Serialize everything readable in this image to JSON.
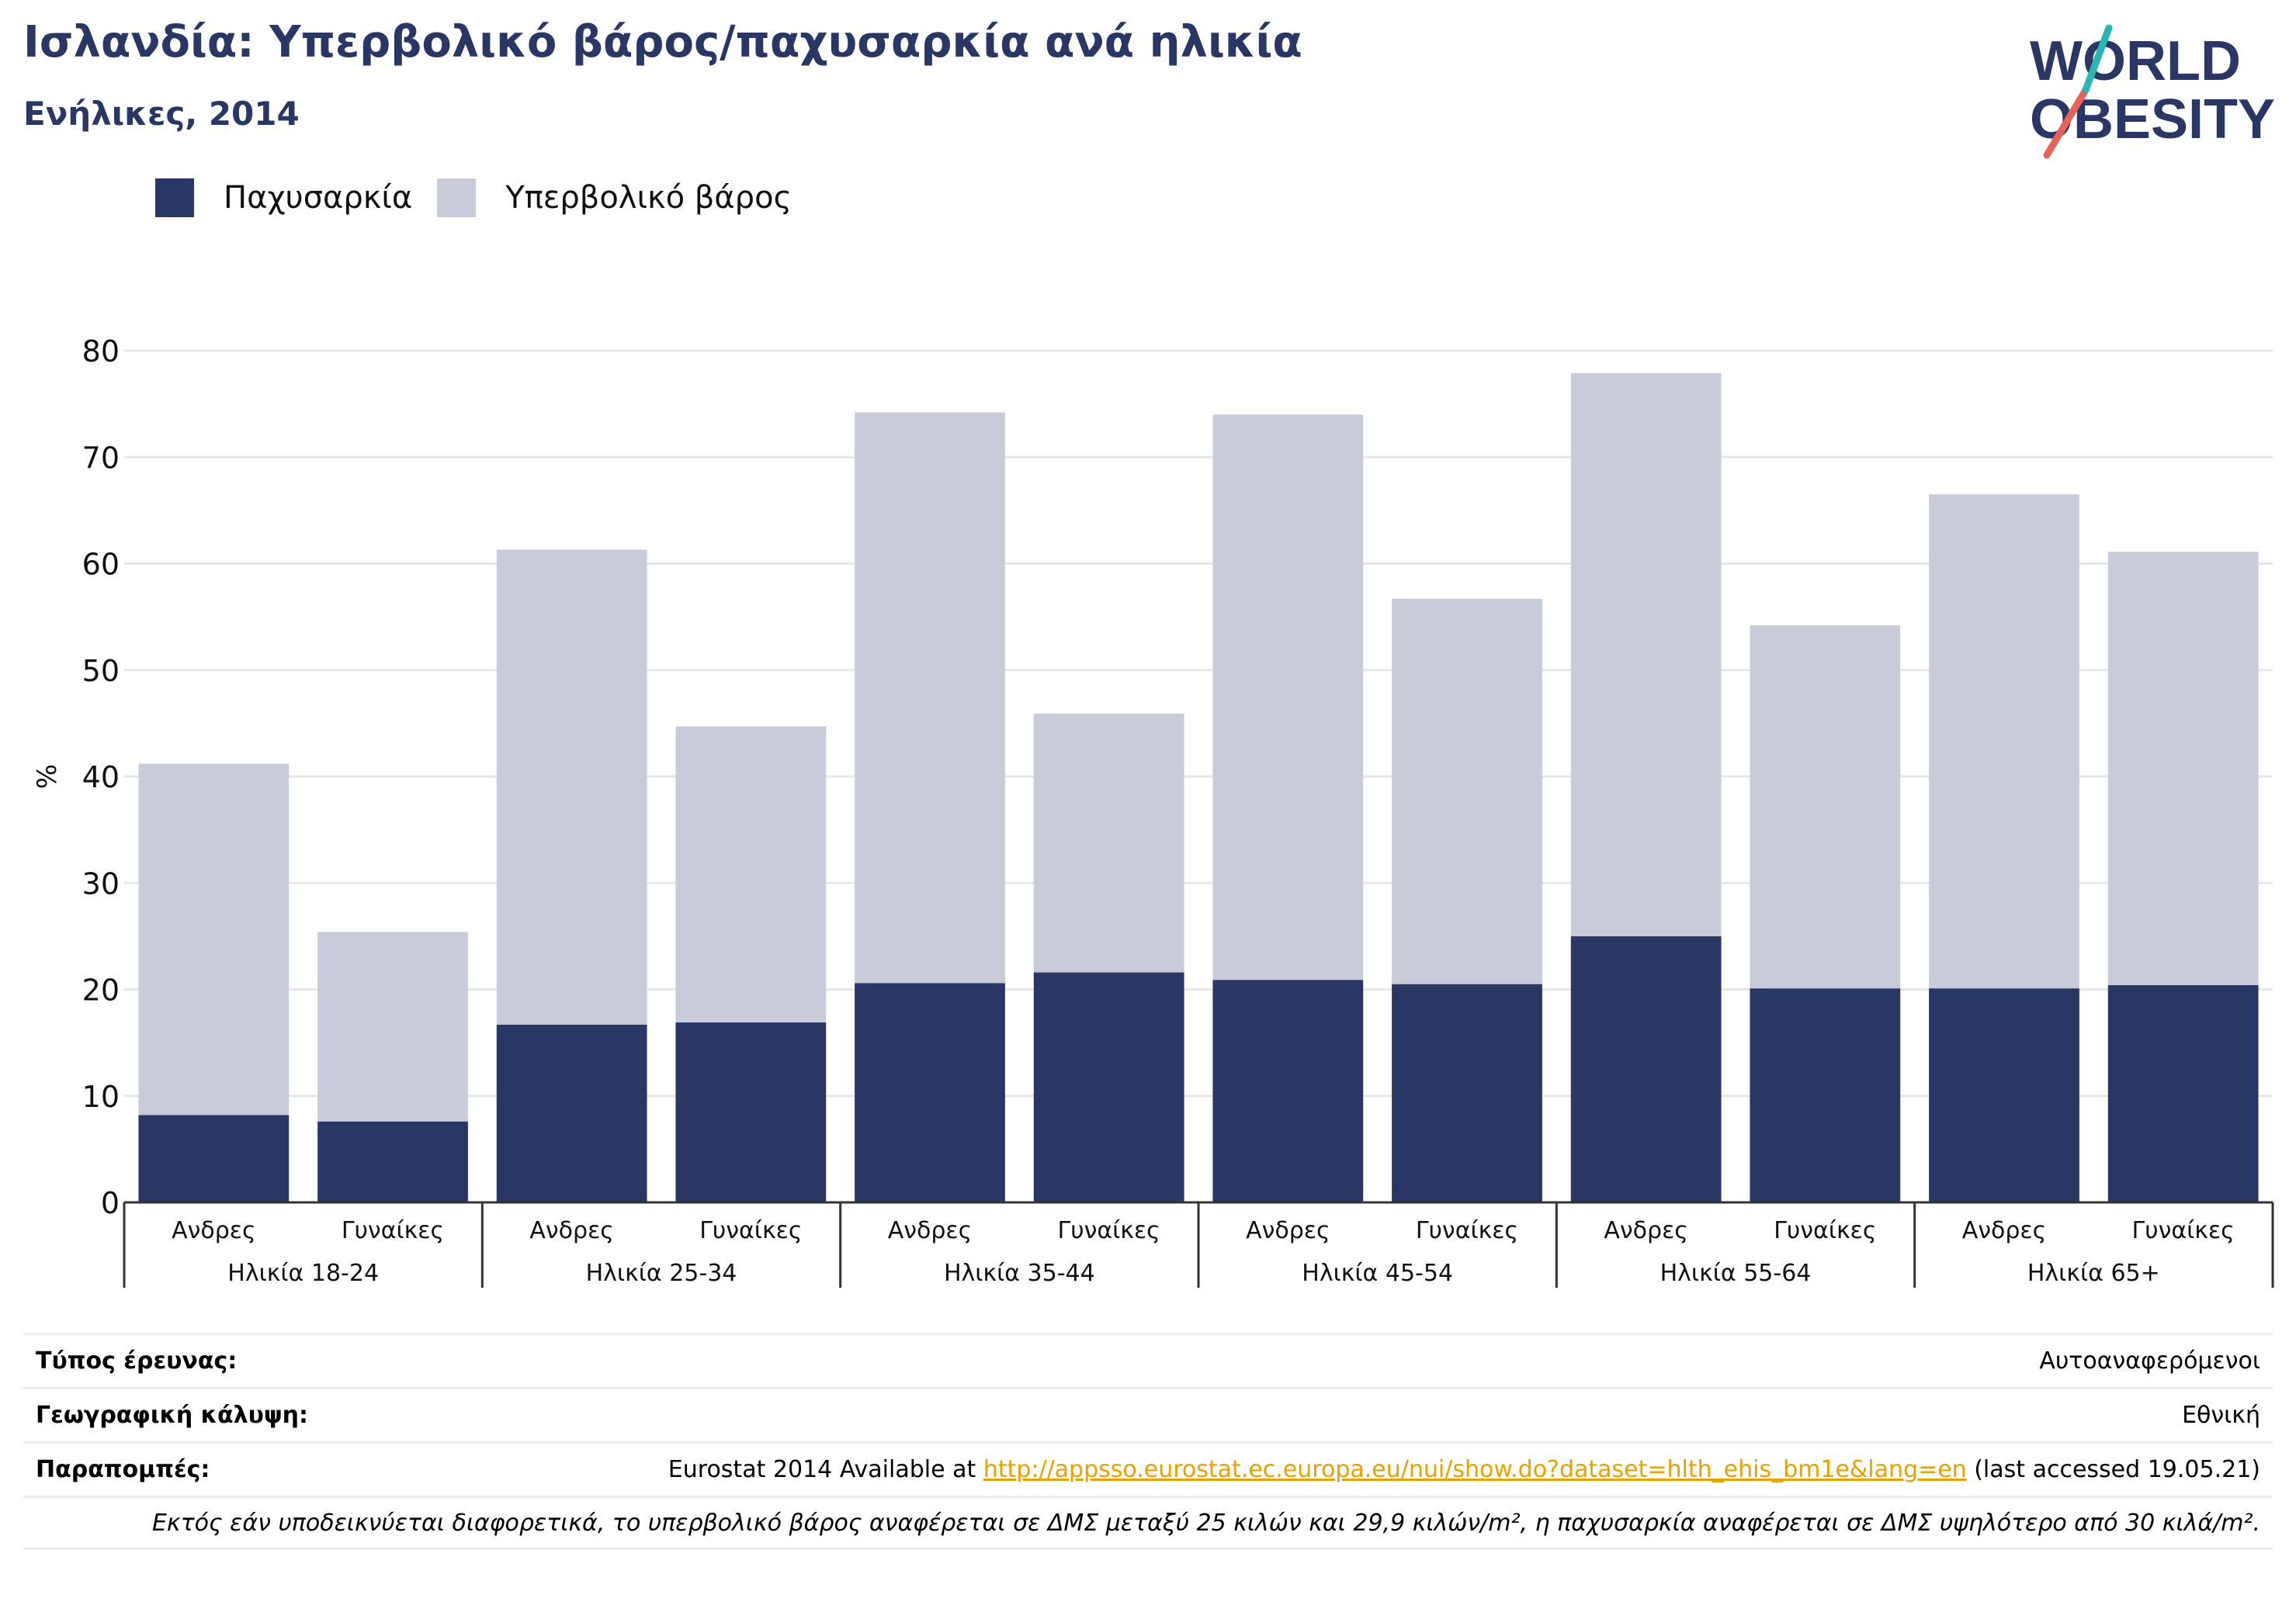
{
  "header": {
    "title": "Ισλανδία: Υπερβολικό βάρος/παχυσαρκία ανά ηλικία",
    "subtitle": "Ενήλικες, 2014"
  },
  "logo": {
    "line1": "WORLD",
    "line2": "OBESITY"
  },
  "colors": {
    "obesity": "#2a3663",
    "overweight": "#c9ccd8",
    "accent_red": "#e8645a",
    "accent_teal": "#2bb5b0",
    "grid": "#e6e6ea",
    "axis": "#333333"
  },
  "legend": [
    {
      "label": "Παχυσαρκία",
      "color": "#2a3663"
    },
    {
      "label": "Υπερβολικό βάρος",
      "color": "#c9ccd8"
    }
  ],
  "chart_data": {
    "type": "bar",
    "stacked": true,
    "ylabel": "%",
    "ylim": [
      0,
      80
    ],
    "yticks": [
      0,
      10,
      20,
      30,
      40,
      50,
      60,
      70,
      80
    ],
    "grid": true,
    "groups": [
      "Ηλικία 18-24",
      "Ηλικία 25-34",
      "Ηλικία 35-44",
      "Ηλικία 45-54",
      "Ηλικία 55-64",
      "Ηλικία 65+"
    ],
    "categories": [
      "Ανδρες",
      "Γυναίκες",
      "Ανδρες",
      "Γυναίκες",
      "Ανδρες",
      "Γυναίκες",
      "Ανδρες",
      "Γυναίκες",
      "Ανδρες",
      "Γυναίκες",
      "Ανδρες",
      "Γυναίκες"
    ],
    "series": [
      {
        "name": "Παχυσαρκία",
        "values": [
          8.2,
          7.6,
          16.7,
          16.9,
          20.6,
          21.6,
          20.9,
          20.5,
          25.0,
          20.1,
          20.1,
          20.4
        ]
      },
      {
        "name": "Υπερβολικό βάρος",
        "values": [
          33.0,
          17.8,
          44.6,
          27.8,
          53.6,
          24.3,
          53.1,
          36.2,
          52.9,
          34.1,
          46.4,
          40.7
        ]
      }
    ]
  },
  "meta": {
    "survey_label": "Τύπος έρευνας:",
    "survey_value": "Αυτοαναφερόμενοι",
    "coverage_label": "Γεωγραφική κάλυψη:",
    "coverage_value": "Εθνική",
    "refs_label": "Παραπομπές:",
    "refs_prefix": "Eurostat 2014 Available at ",
    "refs_link": "http://appsso.eurostat.ec.europa.eu/nui/show.do?dataset=hlth_ehis_bm1e&lang=en",
    "refs_suffix": " (last accessed 19.05.21)",
    "note": "Εκτός εάν υποδεικνύεται διαφορετικά, το υπερβολικό βάρος αναφέρεται σε ΔΜΣ μεταξύ 25 κιλών και 29,9 κιλών/m², η παχυσαρκία αναφέρεται σε ΔΜΣ υψηλότερο από 30 κιλά/m²."
  }
}
